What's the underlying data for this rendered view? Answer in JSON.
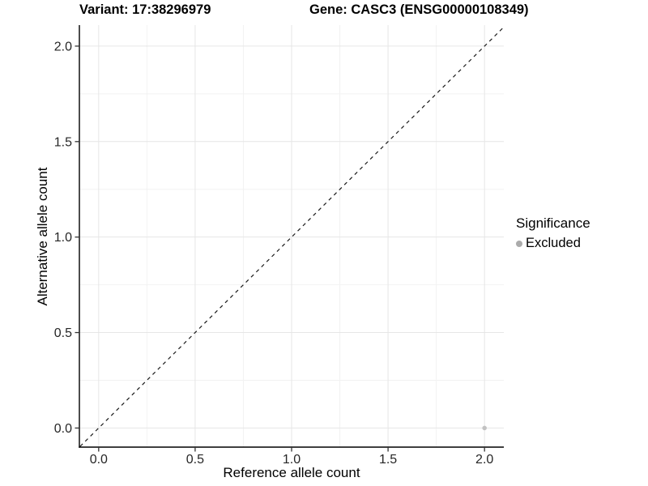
{
  "header": {
    "variant": "Variant: 17:38296979",
    "gene": "Gene: CASC3 (ENSG00000108349)"
  },
  "chart_data": {
    "type": "scatter",
    "title": "Variant: 17:38296979   Gene: CASC3 (ENSG00000108349)",
    "xlabel": "Reference allele count",
    "ylabel": "Alternative allele count",
    "xlim": [
      -0.1,
      2.1
    ],
    "ylim": [
      -0.1,
      2.11
    ],
    "x_ticks": [
      0.0,
      0.5,
      1.0,
      1.5,
      2.0
    ],
    "y_ticks": [
      0.0,
      0.5,
      1.0,
      1.5,
      2.0
    ],
    "x_minor_ticks": [
      0.25,
      0.75,
      1.25,
      1.75
    ],
    "y_minor_ticks": [
      0.25,
      0.75,
      1.25,
      1.75
    ],
    "grid": "major and minor, light gray on white",
    "reference_line": {
      "type": "identity y=x",
      "style": "dashed",
      "color": "#1a1a1a"
    },
    "series": [
      {
        "name": "Excluded",
        "color": "#c2c2c2",
        "points": [
          {
            "x": 2.0,
            "y": 0.0
          }
        ]
      }
    ],
    "legend": {
      "title": "Significance",
      "position": "right",
      "entries": [
        {
          "label": "Excluded",
          "color": "#ababab"
        }
      ]
    },
    "colors": {
      "grid_major": "#e6e6e6",
      "grid_minor": "#f2f2f2",
      "axis_line": "#000000",
      "tick_mark": "#333333",
      "tick_text": "#262626",
      "title_text": "#000000"
    }
  }
}
